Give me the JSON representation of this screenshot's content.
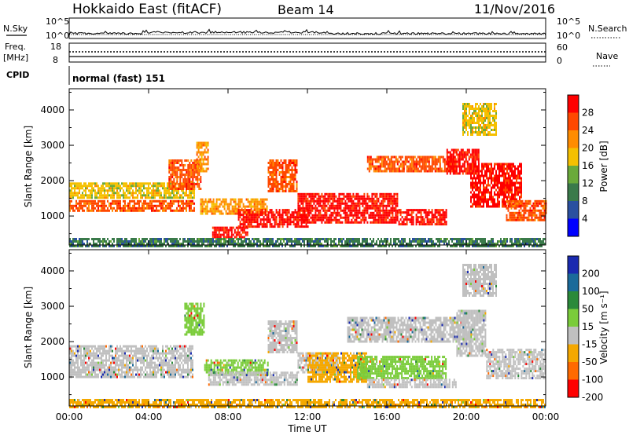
{
  "header": {
    "station": "Hokkaido East (fitACF)",
    "beam": "Beam 14",
    "date": "11/Nov/2016"
  },
  "strip": {
    "nsky_label": "N.Sky",
    "nsky_ticks": [
      "10^5",
      "10^0"
    ],
    "nsearch_label": "N.Search",
    "nsearch_ticks": [
      "10^5",
      "10^0"
    ],
    "freq_label": "Freq.",
    "freq_unit": "[MHz]",
    "freq_ticks": [
      "18",
      "8"
    ],
    "nave_label": "Nave",
    "nave_ticks": [
      "60",
      "0"
    ],
    "cpid_label": "CPID",
    "cpid_value": "normal (fast) 151"
  },
  "chart_data": [
    {
      "type": "heatmap",
      "parameter": "Power",
      "xlabel": "",
      "ylabel": "Slant Range [km]",
      "x_range_hours": [
        0,
        24
      ],
      "ylim_km": [
        180,
        4600
      ],
      "yticks": [
        "1000",
        "2000",
        "3000",
        "4000"
      ],
      "colorbar": {
        "label": "Power [dB]",
        "ticks": [
          "28",
          "24",
          "20",
          "16",
          "12",
          "8",
          "4"
        ],
        "colors": [
          "#ff0000",
          "#ff4800",
          "#ff8c00",
          "#f5c000",
          "#6aaa3a",
          "#3a7a4a",
          "#2a50a0",
          "#0000ff"
        ]
      },
      "echo_bands": [
        {
          "t0": 0.0,
          "t1": 6.3,
          "r0": 1150,
          "r1": 1450,
          "level": 1
        },
        {
          "t0": 0.0,
          "t1": 6.3,
          "r0": 1500,
          "r1": 1950,
          "level": 3
        },
        {
          "t0": 5.0,
          "t1": 6.6,
          "r0": 1800,
          "r1": 2600,
          "level": 1
        },
        {
          "t0": 6.4,
          "t1": 7.0,
          "r0": 2300,
          "r1": 3100,
          "level": 2
        },
        {
          "t0": 6.6,
          "t1": 10.0,
          "r0": 1050,
          "r1": 1500,
          "level": 2
        },
        {
          "t0": 7.2,
          "t1": 9.0,
          "r0": 400,
          "r1": 700,
          "level": 0
        },
        {
          "t0": 8.5,
          "t1": 12.0,
          "r0": 700,
          "r1": 1200,
          "level": 0
        },
        {
          "t0": 10.0,
          "t1": 11.5,
          "r0": 1700,
          "r1": 2600,
          "level": 1
        },
        {
          "t0": 11.5,
          "t1": 16.5,
          "r0": 800,
          "r1": 1650,
          "level": 0
        },
        {
          "t0": 16.5,
          "t1": 19.0,
          "r0": 750,
          "r1": 1200,
          "level": 0
        },
        {
          "t0": 15.0,
          "t1": 19.5,
          "r0": 2250,
          "r1": 2700,
          "level": 1
        },
        {
          "t0": 19.0,
          "t1": 20.6,
          "r0": 2200,
          "r1": 2900,
          "level": 0
        },
        {
          "t0": 20.2,
          "t1": 22.8,
          "r0": 1300,
          "r1": 2500,
          "level": 0
        },
        {
          "t0": 22.0,
          "t1": 24.0,
          "r0": 900,
          "r1": 1450,
          "level": 1
        },
        {
          "t0": 19.8,
          "t1": 21.5,
          "r0": 3300,
          "r1": 4200,
          "level": 3
        },
        {
          "t0": 0.0,
          "t1": 24.0,
          "r0": 180,
          "r1": 380,
          "level": 5
        }
      ]
    },
    {
      "type": "heatmap",
      "parameter": "Velocity",
      "xlabel": "Time UT",
      "ylabel": "Slant Range [km]",
      "x_range_hours": [
        0,
        24
      ],
      "xticks": [
        "00:00",
        "04:00",
        "08:00",
        "12:00",
        "16:00",
        "20:00",
        "00:00"
      ],
      "ylim_km": [
        180,
        4600
      ],
      "yticks": [
        "1000",
        "2000",
        "3000",
        "4000"
      ],
      "colorbar": {
        "label": "Velocity [m s⁻¹]",
        "ticks": [
          "200",
          "100",
          "50",
          "15",
          "-15",
          "-50",
          "-100",
          "-200"
        ],
        "colors": [
          "#1a2ab0",
          "#1a6a9a",
          "#2a8a3a",
          "#7acc3a",
          "#c0c0c0",
          "#f5a800",
          "#ff6a00",
          "#ff0000"
        ]
      },
      "echo_bands": [
        {
          "t0": 0.0,
          "t1": 6.2,
          "r0": 1000,
          "r1": 1900,
          "color": 4
        },
        {
          "t0": 5.8,
          "t1": 6.8,
          "r0": 2200,
          "r1": 3100,
          "color": 3
        },
        {
          "t0": 6.8,
          "t1": 10.0,
          "r0": 1050,
          "r1": 1500,
          "color": 3
        },
        {
          "t0": 7.0,
          "t1": 11.5,
          "r0": 800,
          "r1": 1150,
          "color": 4
        },
        {
          "t0": 10.0,
          "t1": 11.5,
          "r0": 1700,
          "r1": 2600,
          "color": 4
        },
        {
          "t0": 11.5,
          "t1": 13.5,
          "r0": 1150,
          "r1": 1700,
          "color": 4
        },
        {
          "t0": 12.0,
          "t1": 15.0,
          "r0": 850,
          "r1": 1700,
          "color": 5
        },
        {
          "t0": 14.5,
          "t1": 19.0,
          "r0": 1000,
          "r1": 1600,
          "color": 3
        },
        {
          "t0": 15.0,
          "t1": 19.5,
          "r0": 700,
          "r1": 950,
          "color": 4
        },
        {
          "t0": 14.0,
          "t1": 20.2,
          "r0": 2000,
          "r1": 2700,
          "color": 4
        },
        {
          "t0": 19.5,
          "t1": 21.0,
          "r0": 1600,
          "r1": 2900,
          "color": 4
        },
        {
          "t0": 21.0,
          "t1": 24.0,
          "r0": 1000,
          "r1": 1800,
          "color": 4
        },
        {
          "t0": 19.8,
          "t1": 21.5,
          "r0": 3300,
          "r1": 4200,
          "color": 4
        },
        {
          "t0": 0.0,
          "t1": 24.0,
          "r0": 180,
          "r1": 380,
          "color": 5
        }
      ]
    }
  ]
}
